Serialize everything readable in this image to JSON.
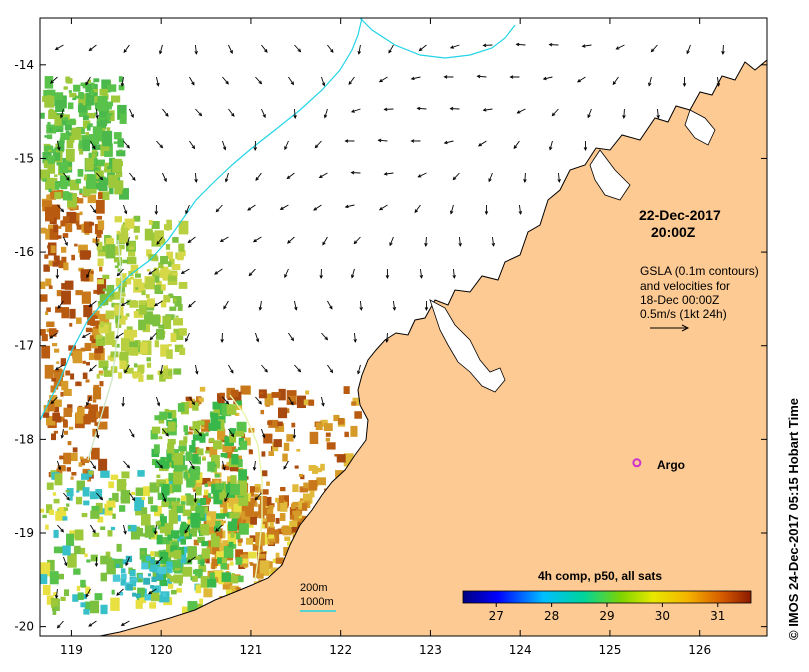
{
  "map": {
    "lon_ticks": [
      "119",
      "120",
      "121",
      "122",
      "123",
      "124",
      "125",
      "126"
    ],
    "lat_ticks": [
      "-14",
      "-15",
      "-16",
      "-17",
      "-18",
      "-19",
      "-20"
    ],
    "lon_range": [
      118.65,
      126.75
    ],
    "lat_range": [
      -20.1,
      -13.5
    ]
  },
  "title": {
    "date": "22-Dec-2017",
    "time": "20:00Z"
  },
  "info": {
    "line1": "GSLA (0.1m contours)",
    "line2": "and velocities for",
    "line3": "18-Dec 00:00Z",
    "line4": "0.5m/s (1kt 24h)"
  },
  "argo": {
    "label": "Argo",
    "lon": 125.3,
    "lat": -18.25,
    "color": "#cc33cc"
  },
  "bathymetry": {
    "label_200": "200m",
    "label_1000": "1000m",
    "color_1000": "#22d4e6",
    "color_200": "#cfe8c8"
  },
  "colorbar": {
    "title": "4h comp, p50, all sats",
    "ticks": [
      "27",
      "28",
      "29",
      "30",
      "31"
    ],
    "range": [
      26.4,
      31.6
    ],
    "tick_values": [
      27,
      28,
      29,
      30,
      31
    ]
  },
  "credit": "© IMOS 24-Dec-2017 05:15 Hobart Time",
  "colors": {
    "land": "#fdca93",
    "frame": "#000000"
  }
}
